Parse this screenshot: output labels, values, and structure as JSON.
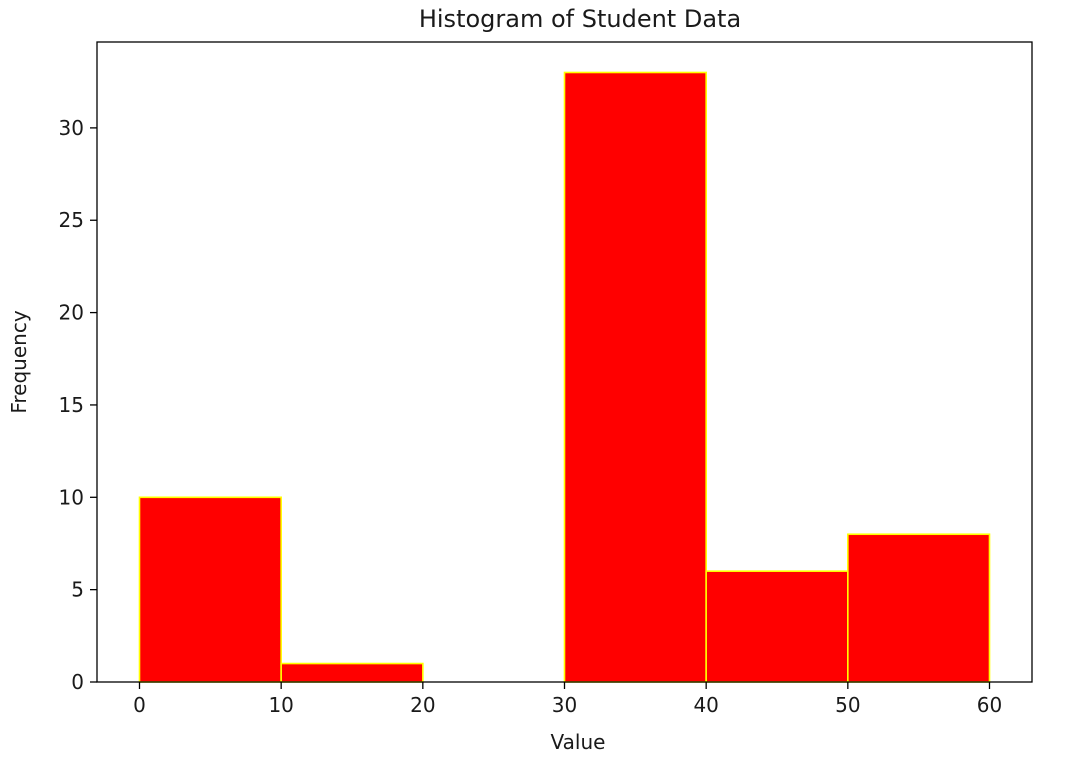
{
  "chart_data": {
    "type": "bar",
    "title": "Histogram of Student Data",
    "xlabel": "Value",
    "ylabel": "Frequency",
    "bins": [
      {
        "start": 0,
        "end": 10,
        "value": 10
      },
      {
        "start": 10,
        "end": 20,
        "value": 1
      },
      {
        "start": 20,
        "end": 30,
        "value": 0
      },
      {
        "start": 30,
        "end": 40,
        "value": 33
      },
      {
        "start": 40,
        "end": 50,
        "value": 6
      },
      {
        "start": 50,
        "end": 60,
        "value": 8
      }
    ],
    "xlim": [
      -3,
      63
    ],
    "ylim": [
      0,
      34.65
    ],
    "xticks": [
      0,
      10,
      20,
      30,
      40,
      50,
      60
    ],
    "yticks": [
      0,
      5,
      10,
      15,
      20,
      25,
      30
    ],
    "grid": false,
    "legend": "none",
    "colors": {
      "bar_fill": "#ff0000",
      "bar_edge": "#ffff00",
      "axis": "#000000",
      "text": "#1a1a1a"
    }
  }
}
